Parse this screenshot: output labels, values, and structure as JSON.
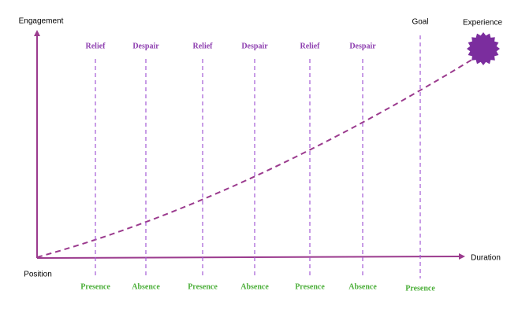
{
  "axes": {
    "y_label": "Engagement",
    "x_label": "Duration",
    "origin_label": "Position"
  },
  "endpoint": {
    "label": "Experience"
  },
  "markers": [
    {
      "top": "Relief",
      "bottom": "Presence"
    },
    {
      "top": "Despair",
      "bottom": "Absence"
    },
    {
      "top": "Relief",
      "bottom": "Presence"
    },
    {
      "top": "Despair",
      "bottom": "Absence"
    },
    {
      "top": "Relief",
      "bottom": "Presence"
    },
    {
      "top": "Despair",
      "bottom": "Absence"
    },
    {
      "top": "Goal",
      "bottom": "Presence"
    }
  ]
}
